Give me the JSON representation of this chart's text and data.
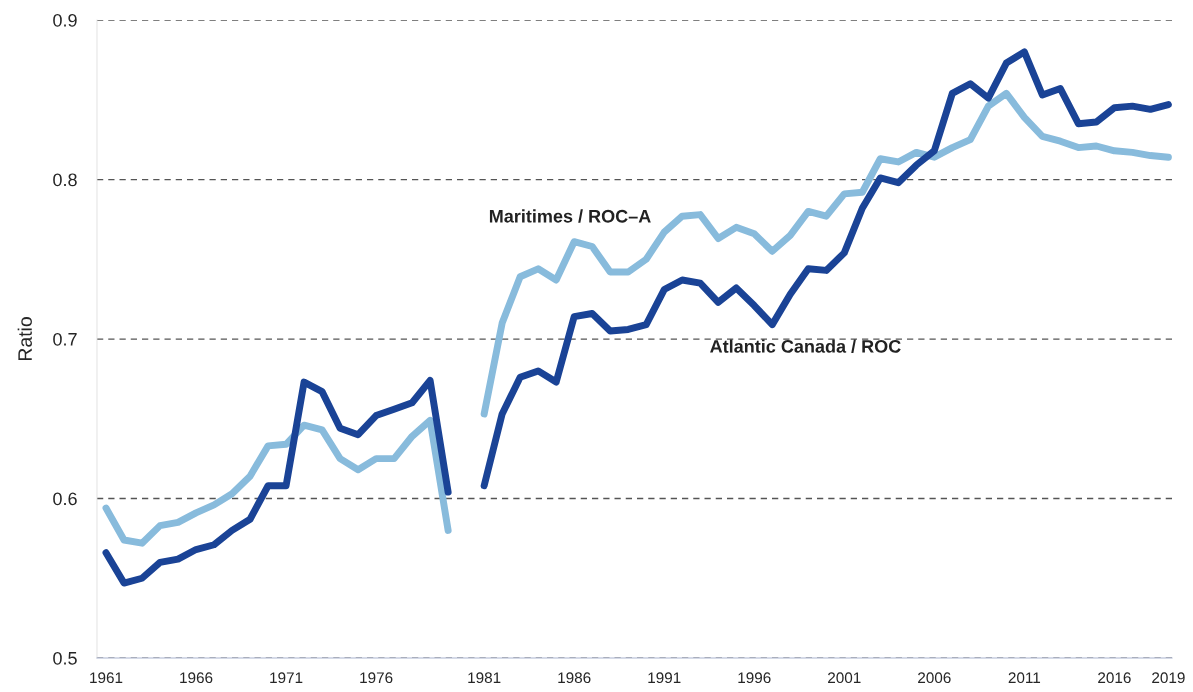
{
  "chart_data": {
    "type": "line",
    "ylabel": "Ratio",
    "categories": [
      "1961",
      null,
      null,
      null,
      null,
      "1966",
      null,
      null,
      null,
      null,
      "1971",
      null,
      null,
      null,
      null,
      "1976",
      null,
      null,
      null,
      null,
      null,
      "1981",
      null,
      null,
      null,
      null,
      "1986",
      null,
      null,
      null,
      null,
      "1991",
      null,
      null,
      null,
      null,
      "1996",
      null,
      null,
      null,
      null,
      "2001",
      null,
      null,
      null,
      null,
      "2006",
      null,
      null,
      null,
      null,
      "2011",
      null,
      null,
      null,
      null,
      "2016",
      null,
      null,
      "2019"
    ],
    "series": [
      {
        "name": "Maritimes / ROC–A",
        "color": "#88bbdc",
        "values": [
          0.594,
          0.574,
          0.572,
          0.583,
          0.585,
          0.591,
          0.596,
          0.603,
          0.614,
          0.633,
          0.634,
          0.646,
          0.643,
          0.625,
          0.618,
          0.625,
          0.625,
          0.639,
          0.649,
          0.58,
          null,
          0.653,
          0.71,
          0.739,
          0.744,
          0.737,
          0.761,
          0.758,
          0.742,
          0.742,
          0.75,
          0.767,
          0.777,
          0.778,
          0.763,
          0.77,
          0.766,
          0.755,
          0.765,
          0.78,
          0.777,
          0.791,
          0.792,
          0.813,
          0.811,
          0.817,
          0.814,
          0.82,
          0.825,
          0.846,
          0.854,
          0.839,
          0.827,
          0.824,
          0.82,
          0.821,
          0.818,
          0.817,
          0.815,
          0.814
        ]
      },
      {
        "name": "Atlantic Canada / ROC",
        "color": "#1a4396",
        "values": [
          0.566,
          0.547,
          0.55,
          0.56,
          0.562,
          0.568,
          0.571,
          0.58,
          0.587,
          0.608,
          0.608,
          0.673,
          0.667,
          0.644,
          0.64,
          0.652,
          0.656,
          0.66,
          0.674,
          0.604,
          null,
          0.608,
          0.653,
          0.676,
          0.68,
          0.673,
          0.714,
          0.716,
          0.705,
          0.706,
          0.709,
          0.731,
          0.737,
          0.735,
          0.723,
          0.732,
          0.721,
          0.709,
          0.728,
          0.744,
          0.743,
          0.754,
          0.782,
          0.801,
          0.798,
          0.809,
          0.818,
          0.854,
          0.86,
          0.851,
          0.873,
          0.88,
          0.853,
          0.857,
          0.835,
          0.836,
          0.845,
          0.846,
          0.844,
          0.847
        ]
      }
    ],
    "ylim": [
      0.5,
      0.9
    ],
    "yticks": [
      0.5,
      0.6,
      0.7,
      0.8,
      0.9
    ],
    "grid": "y",
    "legend": false,
    "marker": "none",
    "line_style": "solid"
  }
}
